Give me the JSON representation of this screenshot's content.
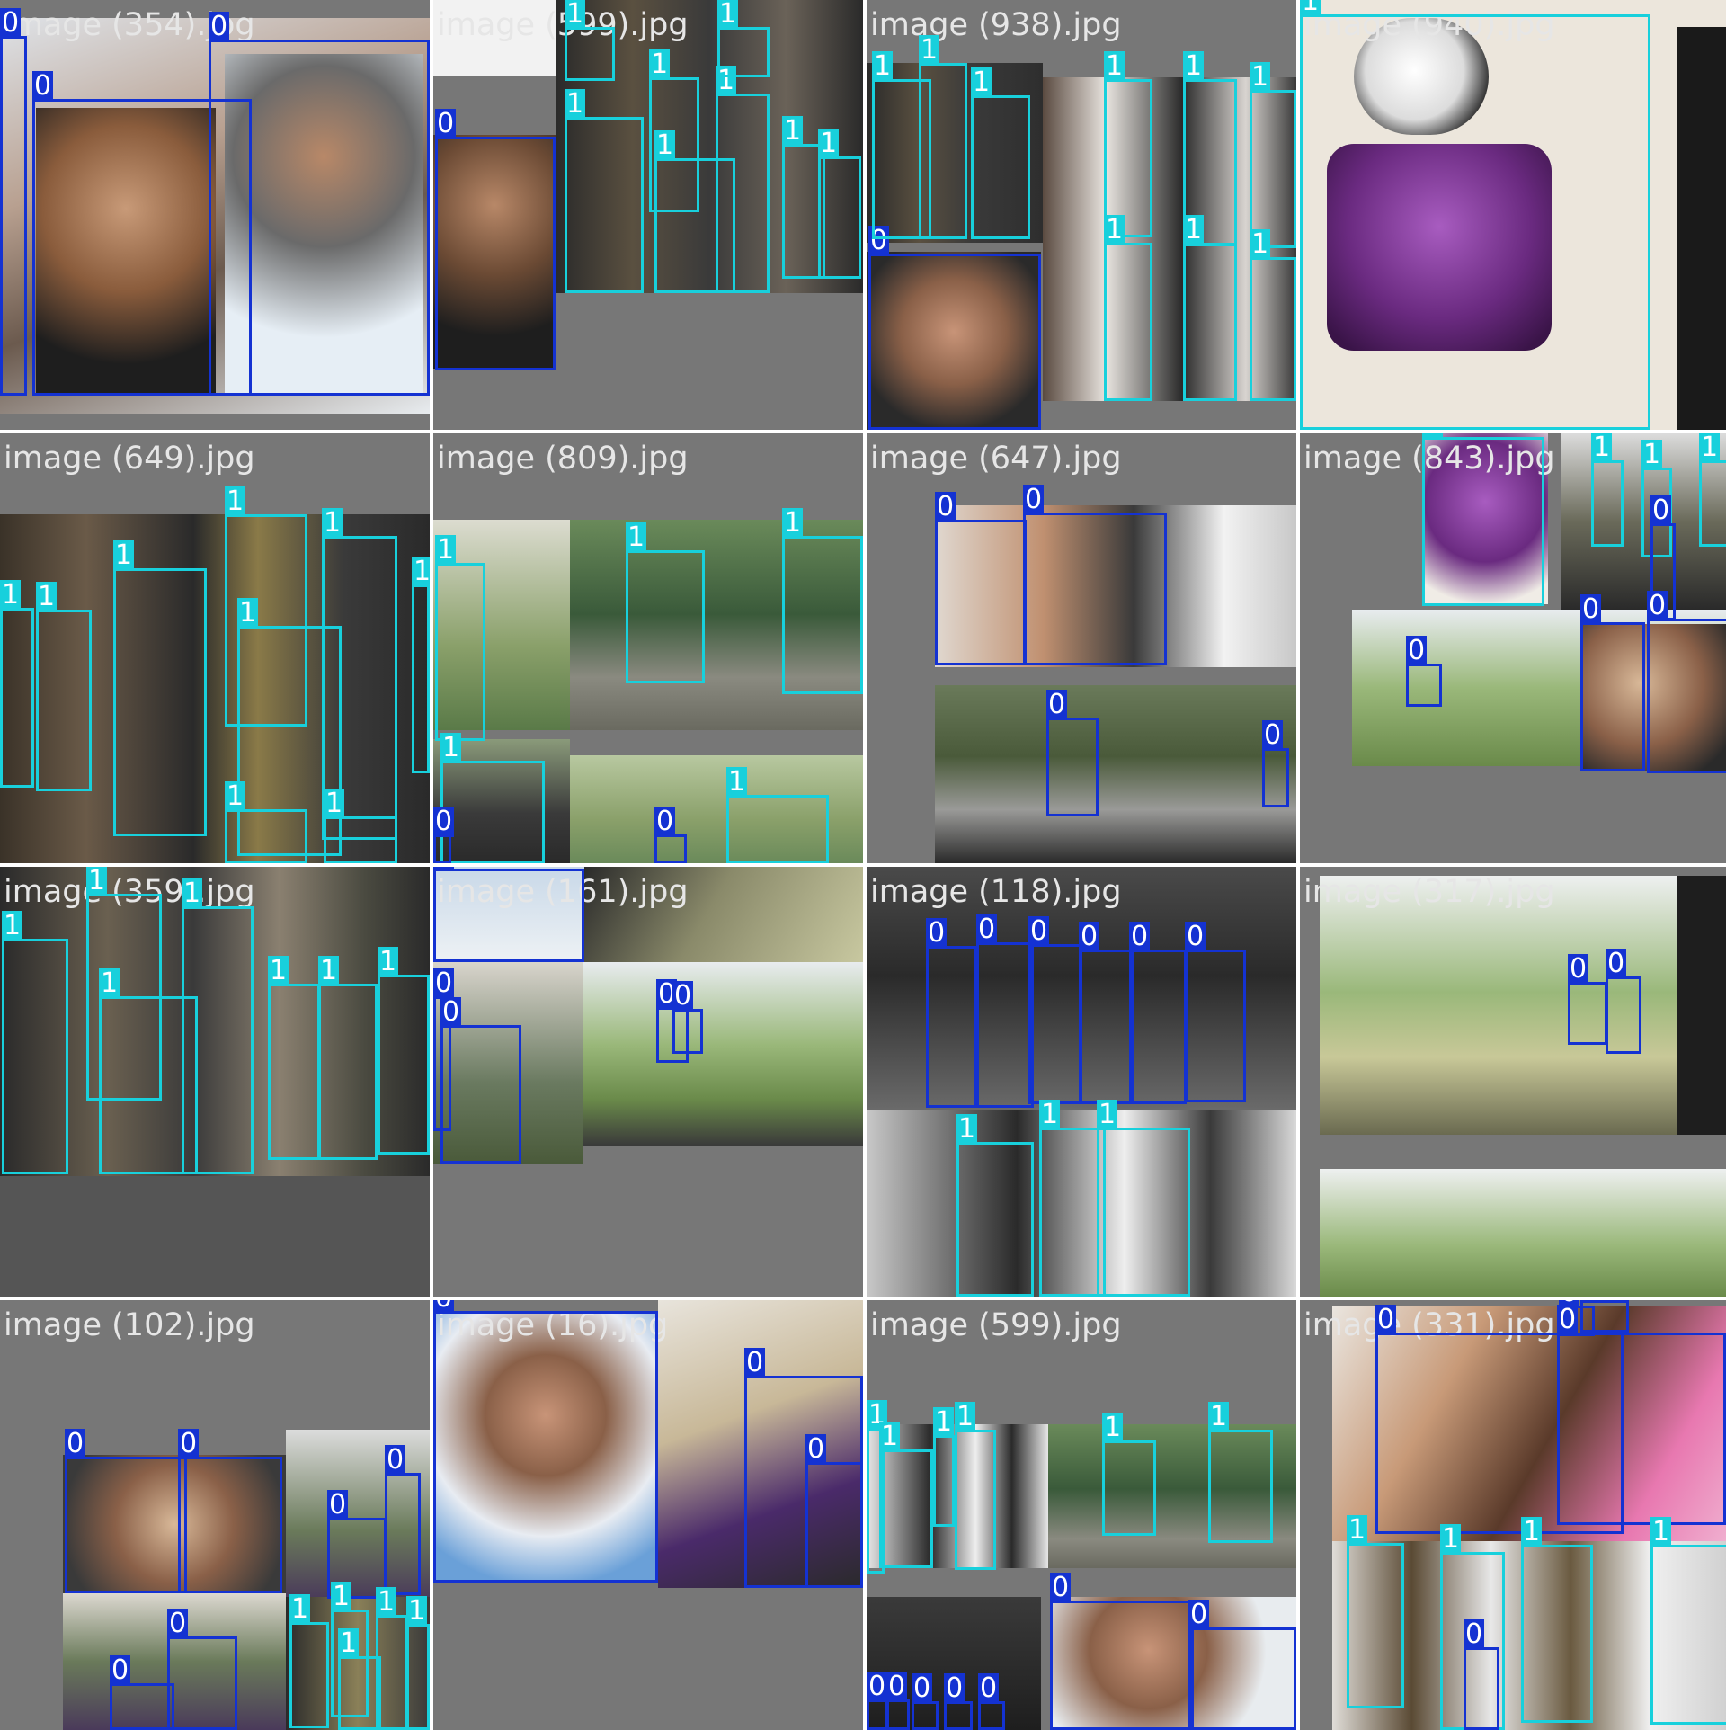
{
  "colors": {
    "class_0": "#1432d2",
    "class_1": "#18d0dc",
    "tile_background": "#777777"
  },
  "tiles": [
    {
      "label": "image (354).jpg"
    },
    {
      "label": "image (599).jpg"
    },
    {
      "label": "image (938).jpg"
    },
    {
      "label": "image (940).jpg"
    },
    {
      "label": "image (649).jpg"
    },
    {
      "label": "image (809).jpg"
    },
    {
      "label": "image (647).jpg"
    },
    {
      "label": "image (843).jpg"
    },
    {
      "label": "image (359).jpg"
    },
    {
      "label": "image (161).jpg"
    },
    {
      "label": "image (118).jpg"
    },
    {
      "label": "image (317).jpg"
    },
    {
      "label": "image (102).jpg"
    },
    {
      "label": "image (16).jpg"
    },
    {
      "label": "image (599).jpg"
    },
    {
      "label": "image (331).jpg"
    }
  ],
  "class_labels": {
    "zero": "0",
    "one": "1"
  }
}
